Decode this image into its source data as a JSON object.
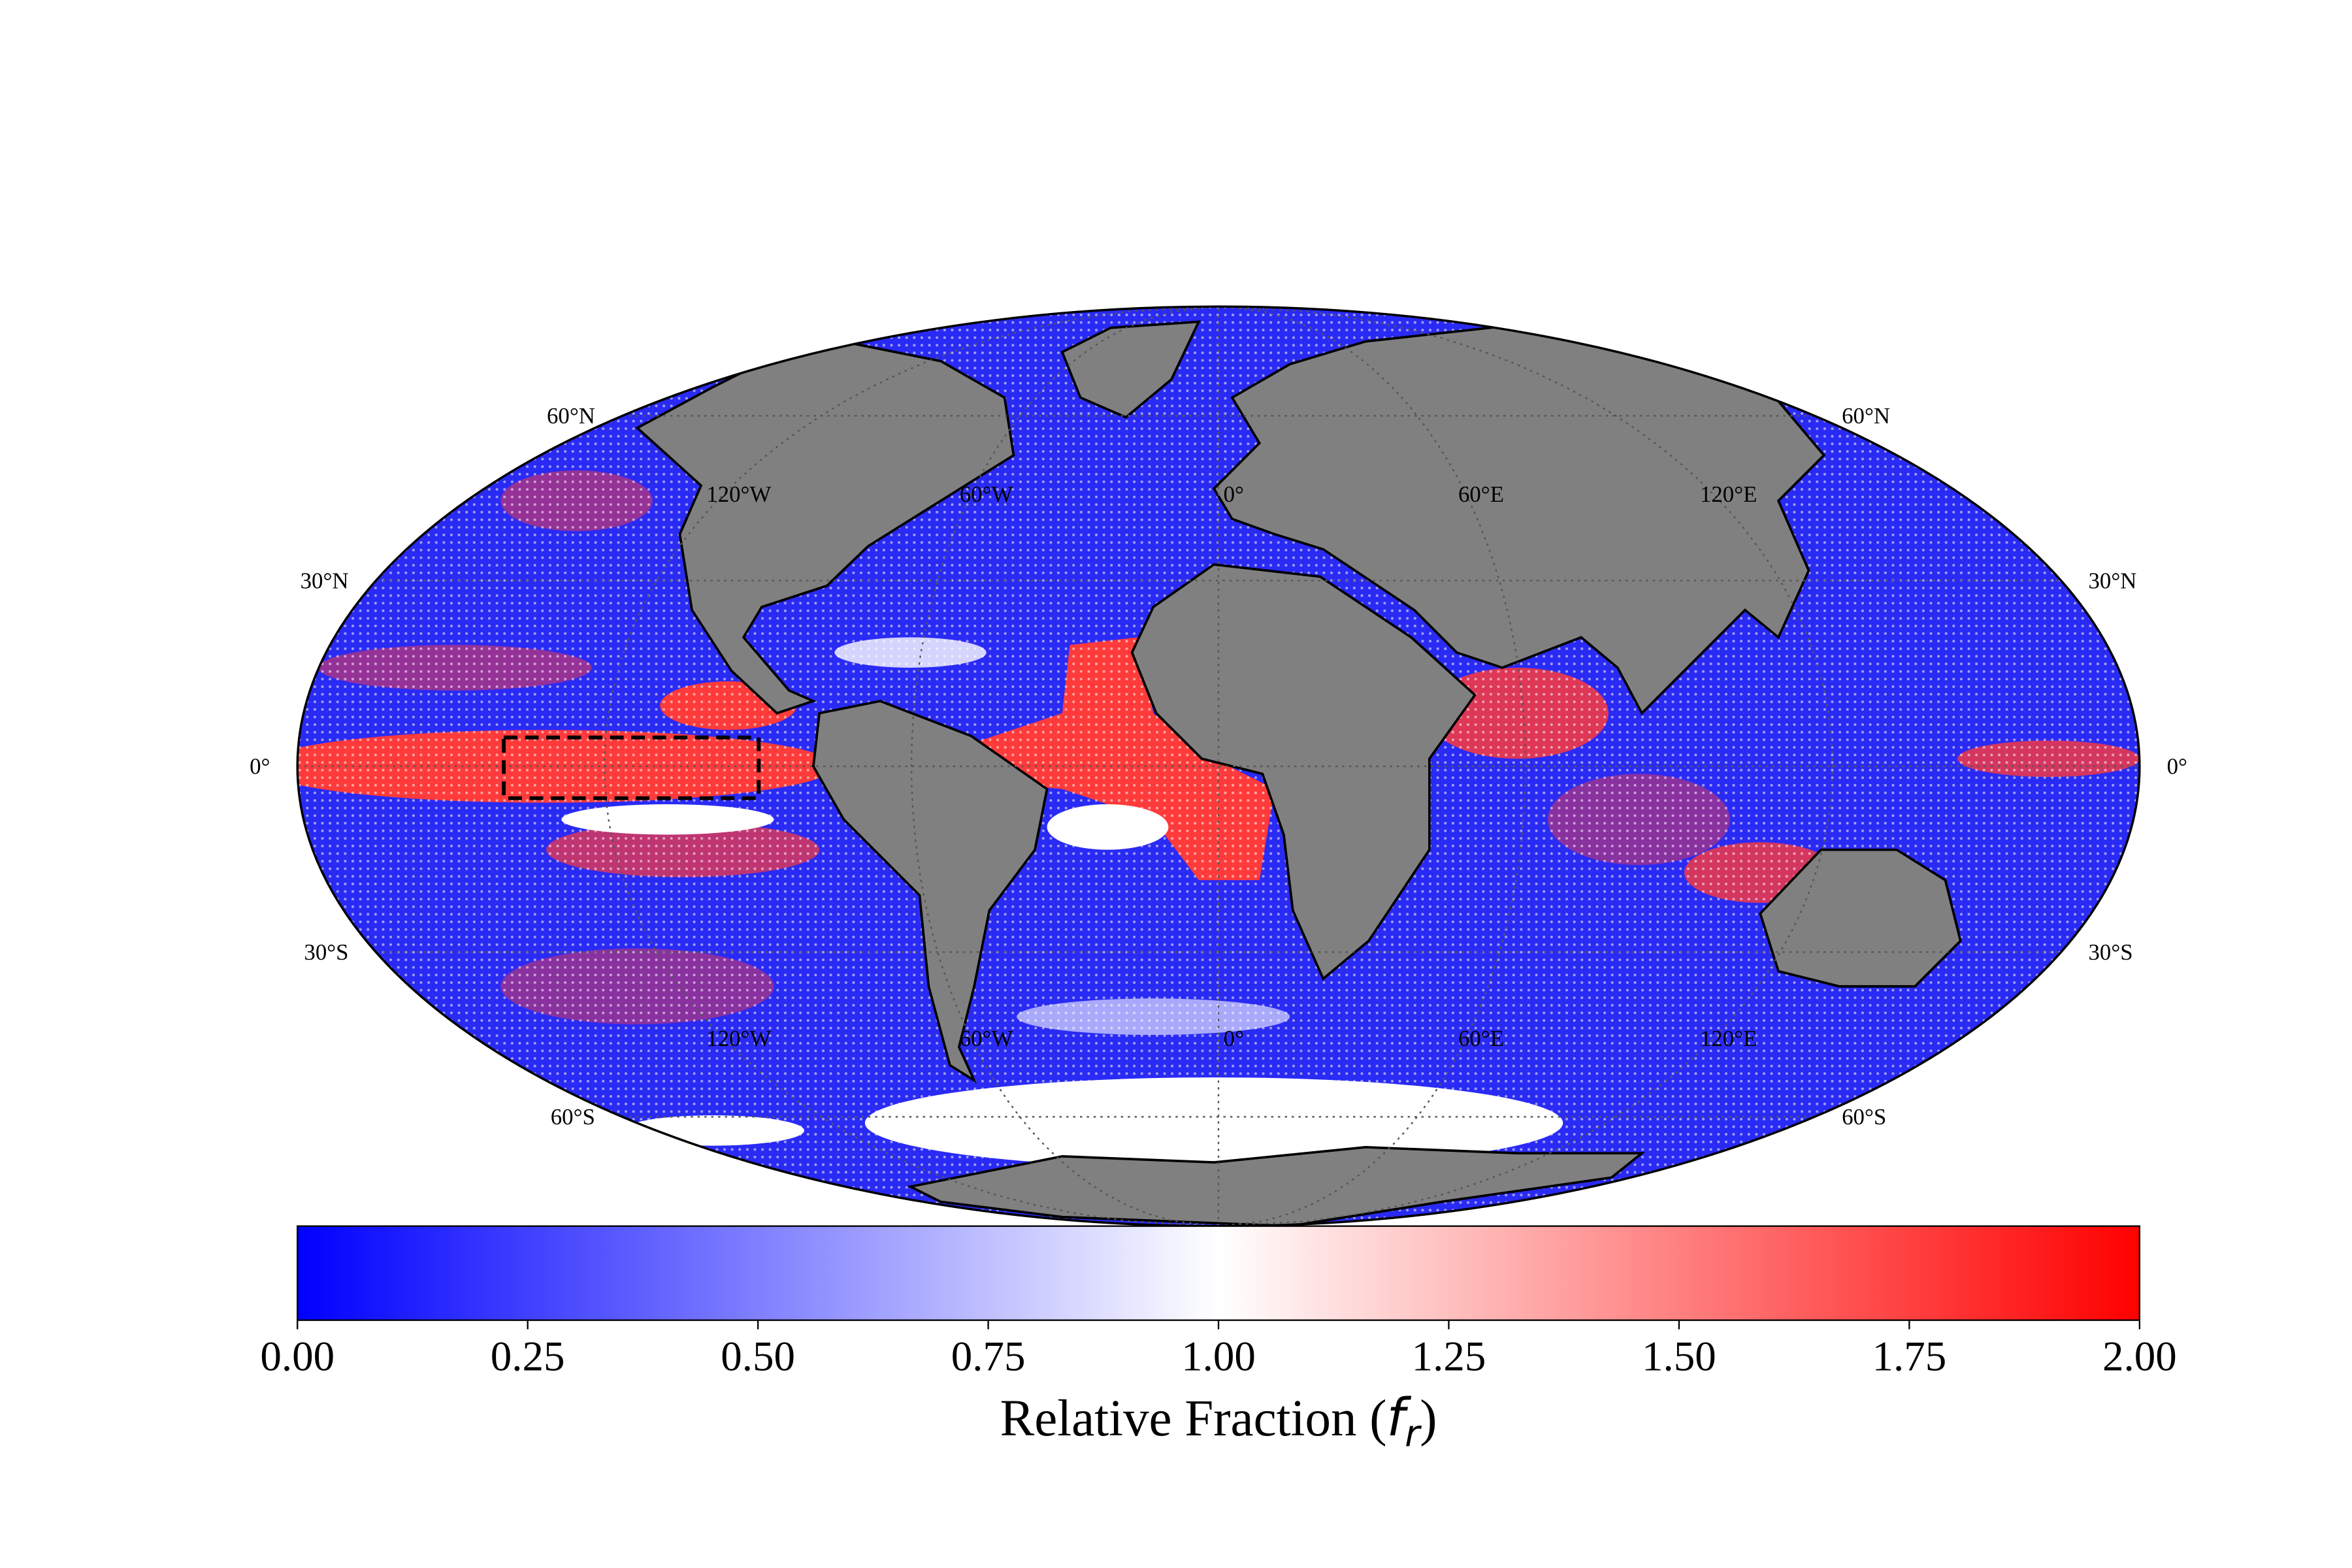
{
  "map": {
    "projection": "mollweide",
    "lat_labels": [
      {
        "value": 60,
        "label": "60°N"
      },
      {
        "value": 30,
        "label": "30°N"
      },
      {
        "value": 0,
        "label": "0°"
      },
      {
        "value": -30,
        "label": "30°S"
      },
      {
        "value": -60,
        "label": "60°S"
      }
    ],
    "lon_labels": [
      {
        "value": -120,
        "label": "120°W"
      },
      {
        "value": -60,
        "label": "60°W"
      },
      {
        "value": 0,
        "label": "0°"
      },
      {
        "value": 60,
        "label": "60°E"
      },
      {
        "value": 120,
        "label": "120°E"
      }
    ]
  },
  "colorbar": {
    "range": [
      0,
      2
    ],
    "colors": [
      "#0000ff",
      "#ffffff",
      "#ff0000"
    ],
    "ticks": [
      {
        "value": 0,
        "label": "0.00"
      },
      {
        "value": 0.25,
        "label": "0.25"
      },
      {
        "value": 0.5,
        "label": "0.50"
      },
      {
        "value": 0.75,
        "label": "0.75"
      },
      {
        "value": 1,
        "label": "1.00"
      },
      {
        "value": 1.25,
        "label": "1.25"
      },
      {
        "value": 1.5,
        "label": "1.50"
      },
      {
        "value": 1.75,
        "label": "1.75"
      },
      {
        "value": 2,
        "label": "2.00"
      }
    ],
    "label": {
      "text": "Relative Fraction (",
      "symbol": "f",
      "subscript": "r",
      "close": ")"
    }
  }
}
